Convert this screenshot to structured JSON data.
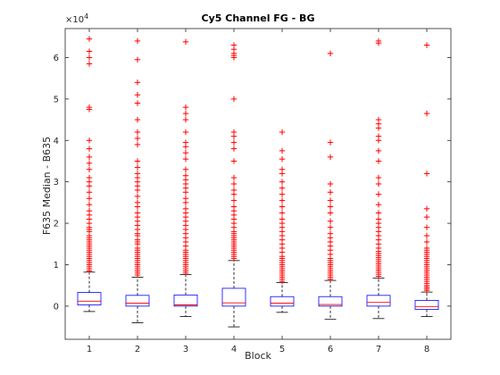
{
  "chart_data": {
    "type": "boxplot",
    "title": "Cy5 Channel FG - BG",
    "xlabel": "Block",
    "ylabel": "F635 Median - B635",
    "y_exponent_label": "×10",
    "y_exponent_power": "4",
    "y_scale_factor": 10000,
    "categories": [
      "1",
      "2",
      "3",
      "4",
      "5",
      "6",
      "7",
      "8"
    ],
    "ylim": [
      -0.8,
      6.7
    ],
    "yticks": [
      0,
      1,
      2,
      3,
      4,
      5,
      6
    ],
    "ytick_labels": [
      "0",
      "1",
      "2",
      "3",
      "4",
      "5",
      "6"
    ],
    "grid": false,
    "colors": {
      "box": "#0000ff",
      "median": "#ff0000",
      "whisker": "#000000",
      "outlier": "#ff0000",
      "axis": "#262626"
    },
    "boxes": [
      {
        "q1": 0.03,
        "median": 0.12,
        "q3": 0.33,
        "whisker_low": -0.13,
        "whisker_high": 0.82,
        "outliers": [
          0.85,
          0.9,
          0.95,
          1.0,
          1.05,
          1.1,
          1.15,
          1.2,
          1.25,
          1.3,
          1.35,
          1.4,
          1.45,
          1.5,
          1.55,
          1.6,
          1.65,
          1.7,
          1.8,
          1.85,
          1.9,
          2.0,
          2.1,
          2.2,
          2.3,
          2.45,
          2.6,
          2.75,
          2.9,
          3.0,
          3.1,
          3.3,
          3.45,
          3.6,
          3.8,
          4.0,
          4.75,
          4.8,
          5.85,
          6.0,
          6.15,
          6.45
        ]
      },
      {
        "q1": 0.0,
        "median": 0.07,
        "q3": 0.26,
        "whisker_low": -0.4,
        "whisker_high": 0.7,
        "outliers": [
          0.75,
          0.8,
          0.85,
          0.9,
          0.95,
          1.0,
          1.05,
          1.1,
          1.15,
          1.2,
          1.25,
          1.3,
          1.35,
          1.4,
          1.5,
          1.55,
          1.6,
          1.7,
          1.75,
          1.85,
          1.95,
          2.05,
          2.15,
          2.25,
          2.4,
          2.5,
          2.65,
          2.8,
          2.9,
          3.0,
          3.1,
          3.2,
          3.35,
          3.5,
          3.9,
          4.05,
          4.2,
          4.5,
          4.9,
          5.1,
          5.4,
          5.95,
          6.4
        ]
      },
      {
        "q1": 0.0,
        "median": 0.03,
        "q3": 0.27,
        "whisker_low": -0.25,
        "whisker_high": 0.76,
        "outliers": [
          0.8,
          0.85,
          0.9,
          0.95,
          1.0,
          1.05,
          1.1,
          1.15,
          1.2,
          1.25,
          1.3,
          1.35,
          1.45,
          1.55,
          1.65,
          1.75,
          1.85,
          1.95,
          2.05,
          2.15,
          2.25,
          2.35,
          2.5,
          2.6,
          2.75,
          2.85,
          2.95,
          3.05,
          3.15,
          3.3,
          3.55,
          3.7,
          3.85,
          3.95,
          4.2,
          4.5,
          4.65,
          4.8,
          6.38
        ]
      },
      {
        "q1": 0.0,
        "median": 0.08,
        "q3": 0.43,
        "whisker_low": -0.5,
        "whisker_high": 1.1,
        "outliers": [
          1.15,
          1.2,
          1.25,
          1.3,
          1.35,
          1.4,
          1.45,
          1.5,
          1.55,
          1.6,
          1.65,
          1.7,
          1.75,
          1.8,
          1.9,
          2.0,
          2.1,
          2.2,
          2.3,
          2.4,
          2.55,
          2.7,
          2.8,
          2.95,
          3.1,
          3.5,
          3.8,
          3.95,
          4.1,
          4.2,
          5.0,
          6.0,
          6.05,
          6.1,
          6.2,
          6.3
        ]
      },
      {
        "q1": 0.0,
        "median": 0.07,
        "q3": 0.23,
        "whisker_low": -0.15,
        "whisker_high": 0.57,
        "outliers": [
          0.6,
          0.65,
          0.7,
          0.75,
          0.8,
          0.85,
          0.9,
          0.95,
          1.0,
          1.05,
          1.1,
          1.15,
          1.2,
          1.3,
          1.4,
          1.5,
          1.6,
          1.7,
          1.8,
          1.9,
          2.0,
          2.1,
          2.25,
          2.4,
          2.55,
          2.7,
          2.85,
          3.0,
          3.2,
          3.3,
          3.55,
          3.75,
          4.2
        ]
      },
      {
        "q1": 0.0,
        "median": 0.04,
        "q3": 0.23,
        "whisker_low": -0.32,
        "whisker_high": 0.62,
        "outliers": [
          0.65,
          0.7,
          0.75,
          0.8,
          0.85,
          0.9,
          0.95,
          1.0,
          1.05,
          1.1,
          1.15,
          1.25,
          1.35,
          1.45,
          1.55,
          1.65,
          1.75,
          1.9,
          2.05,
          2.25,
          2.4,
          2.55,
          2.75,
          2.95,
          3.6,
          3.95,
          6.1
        ]
      },
      {
        "q1": 0.0,
        "median": 0.09,
        "q3": 0.26,
        "whisker_low": -0.3,
        "whisker_high": 0.68,
        "outliers": [
          0.72,
          0.77,
          0.82,
          0.87,
          0.92,
          0.97,
          1.02,
          1.07,
          1.12,
          1.17,
          1.22,
          1.27,
          1.32,
          1.4,
          1.5,
          1.6,
          1.7,
          1.8,
          1.9,
          2.0,
          2.1,
          2.25,
          2.45,
          2.7,
          2.95,
          3.1,
          3.5,
          3.75,
          4.0,
          4.1,
          4.3,
          4.4,
          4.5,
          6.35,
          6.4
        ]
      },
      {
        "q1": -0.08,
        "median": -0.01,
        "q3": 0.14,
        "whisker_low": -0.25,
        "whisker_high": 0.34,
        "outliers": [
          0.38,
          0.42,
          0.46,
          0.5,
          0.55,
          0.6,
          0.65,
          0.7,
          0.75,
          0.8,
          0.85,
          0.9,
          0.95,
          1.0,
          1.05,
          1.1,
          1.15,
          1.2,
          1.25,
          1.3,
          1.35,
          1.4,
          1.55,
          1.7,
          1.9,
          2.15,
          2.35,
          3.2,
          4.65,
          6.3
        ]
      }
    ]
  }
}
